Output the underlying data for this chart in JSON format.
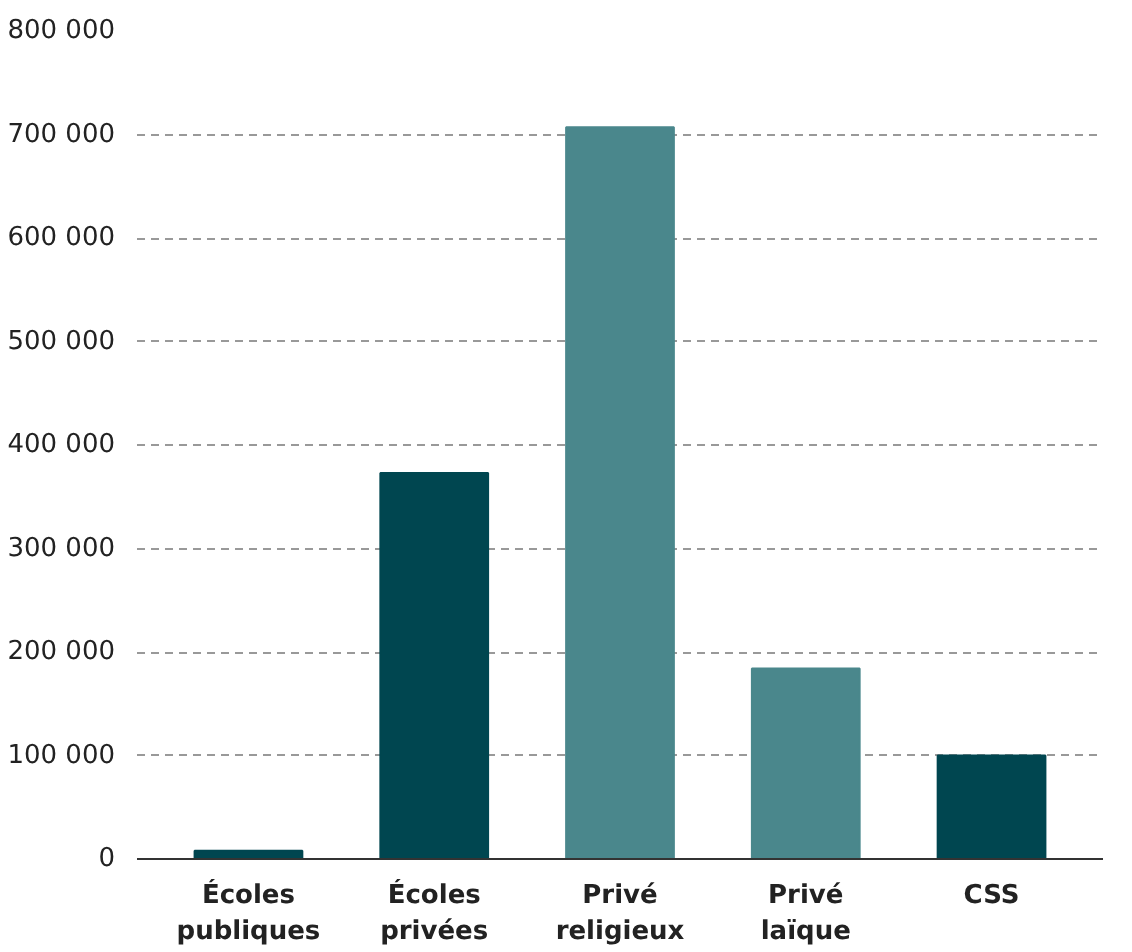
{
  "chart_data": {
    "type": "bar",
    "categories": [
      "Écoles publiques",
      "Écoles privées",
      "Privé religieux",
      "Privé laïque",
      "CSS"
    ],
    "values": [
      8000,
      373000,
      707000,
      184000,
      100000
    ],
    "colors": [
      "#004650",
      "#004650",
      "#4a878c",
      "#4a878c",
      "#004650"
    ],
    "ylim": [
      0,
      800000
    ],
    "yticks": [
      {
        "value": 0,
        "label": "0"
      },
      {
        "value": 100000,
        "label": "100 000"
      },
      {
        "value": 200000,
        "label": "200 000"
      },
      {
        "value": 300000,
        "label": "300 000"
      },
      {
        "value": 400000,
        "label": "400 000"
      },
      {
        "value": 500000,
        "label": "500 000"
      },
      {
        "value": 600000,
        "label": "600 000"
      },
      {
        "value": 700000,
        "label": "700 000"
      },
      {
        "value": 800000,
        "label": "800 000"
      }
    ],
    "grid": "y"
  }
}
